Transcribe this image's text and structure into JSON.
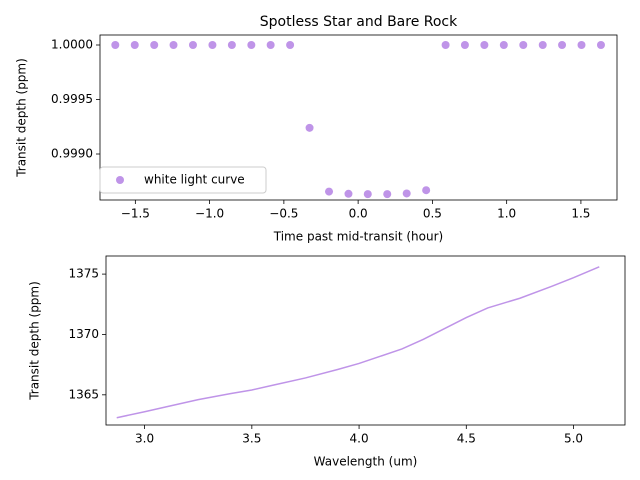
{
  "chart_data": [
    {
      "type": "scatter",
      "title": "Spotless Star and Bare Rock",
      "xlabel": "Time past mid-transit (hour)",
      "ylabel": "Transit depth (ppm)",
      "x": [
        -1.635,
        -1.504,
        -1.373,
        -1.243,
        -1.112,
        -0.981,
        -0.85,
        -0.719,
        -0.589,
        -0.458,
        -0.327,
        -0.196,
        -0.065,
        0.065,
        0.196,
        0.327,
        0.458,
        0.589,
        0.719,
        0.85,
        0.981,
        1.112,
        1.243,
        1.373,
        1.504,
        1.635
      ],
      "series": [
        {
          "name": "white light curve",
          "color": "#bf94e8",
          "values": [
            1.0,
            1.0,
            1.0,
            1.0,
            1.0,
            1.0,
            1.0,
            1.0,
            1.0,
            1.0,
            0.99924,
            0.998655,
            0.998635,
            0.998632,
            0.998632,
            0.998638,
            0.998668,
            1.0,
            1.0,
            1.0,
            1.0,
            1.0,
            1.0,
            1.0,
            1.0,
            1.0
          ]
        }
      ],
      "xlim": [
        -1.738,
        1.743
      ],
      "ylim": [
        0.998578,
        1.0000917
      ],
      "xticks": [
        {
          "value": -1.5,
          "label": "−1.5"
        },
        {
          "value": -1.0,
          "label": "−1.0"
        },
        {
          "value": -0.5,
          "label": "−0.5"
        },
        {
          "value": 0,
          "label": "0.0"
        },
        {
          "value": 0.5,
          "label": "0.5"
        },
        {
          "value": 1.0,
          "label": "1.0"
        },
        {
          "value": 1.5,
          "label": "1.5"
        }
      ],
      "yticks": [
        {
          "value": 0.999,
          "label": "0.9990"
        },
        {
          "value": 0.9995,
          "label": "0.9995"
        },
        {
          "value": 1.0,
          "label": "1.0000"
        }
      ],
      "legend": "lower left"
    },
    {
      "type": "line",
      "xlabel": "Wavelength (um)",
      "ylabel": "Transit depth (ppm)",
      "x": [
        2.87,
        3.0,
        3.1,
        3.25,
        3.4,
        3.5,
        3.6,
        3.75,
        3.9,
        4.0,
        4.1,
        4.2,
        4.3,
        4.4,
        4.5,
        4.6,
        4.75,
        4.9,
        5.0,
        5.12
      ],
      "series": [
        {
          "color": "#bf94e8",
          "values": [
            1363.1,
            1363.6,
            1364.0,
            1364.6,
            1365.1,
            1365.4,
            1365.8,
            1366.4,
            1367.1,
            1367.6,
            1368.2,
            1368.8,
            1369.6,
            1370.5,
            1371.4,
            1372.2,
            1373.0,
            1374.0,
            1374.7,
            1375.6
          ]
        }
      ],
      "xlim": [
        2.82,
        5.24
      ],
      "ylim": [
        1362.5,
        1376.5
      ],
      "xticks": [
        {
          "value": 3,
          "label": "3.0"
        },
        {
          "value": 3.5,
          "label": "3.5"
        },
        {
          "value": 4,
          "label": "4.0"
        },
        {
          "value": 4.5,
          "label": "4.5"
        },
        {
          "value": 5,
          "label": "5.0"
        }
      ],
      "yticks": [
        1365,
        1370,
        1375
      ]
    }
  ]
}
